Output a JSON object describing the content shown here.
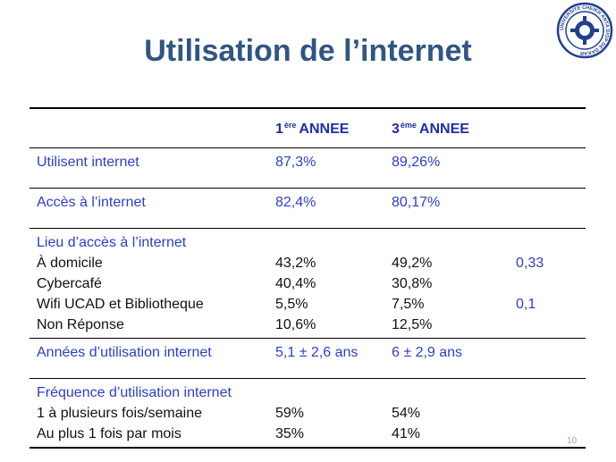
{
  "title": "Utilisation de l’internet",
  "logo_text": "UNIVERSITE CHEIKH ANTA DIOP DE DAKAR",
  "header": {
    "col2_prefix": "1",
    "col2_sup": "ère",
    "col2_suffix": "ANNEE",
    "col3_prefix": "3",
    "col3_sup": "ème",
    "col3_suffix": "ANNEE"
  },
  "rows": {
    "utilisent": {
      "label": "Utilisent internet",
      "y1": "87,3%",
      "y3": "89,26%"
    },
    "acces": {
      "label": "Accès à l’internet",
      "y1": "82,4%",
      "y3": "80,17%"
    },
    "lieu": {
      "label": "Lieu d’accès à l’internet",
      "items": [
        {
          "label": "À domicile",
          "y1": "43,2%",
          "y3": "49,2%",
          "p": "0,33"
        },
        {
          "label": "Cybercafé",
          "y1": "40,4%",
          "y3": "30,8%",
          "p": ""
        },
        {
          "label": "Wifi UCAD et Bibliotheque",
          "y1": "5,5%",
          "y3": "7,5%",
          "p": "0,1"
        },
        {
          "label": "Non Réponse",
          "y1": "10,6%",
          "y3": "12,5%",
          "p": ""
        }
      ]
    },
    "annees": {
      "label": "Années d’utilisation internet",
      "y1": "5,1 ± 2,6 ans",
      "y3": "6 ± 2,9 ans"
    },
    "frequence": {
      "label": "Fréquence d’utilisation internet",
      "items": [
        {
          "label": "1 à plusieurs fois/semaine",
          "y1": "59%",
          "y3": "54%"
        },
        {
          "label": "Au plus 1 fois par mois",
          "y1": "35%",
          "y3": "41%"
        }
      ]
    }
  },
  "page_number": "10",
  "colors": {
    "title": "#2f5684",
    "accent_text": "#2b3fc9",
    "header_text": "#1e2fa8",
    "rule": "#000000"
  }
}
